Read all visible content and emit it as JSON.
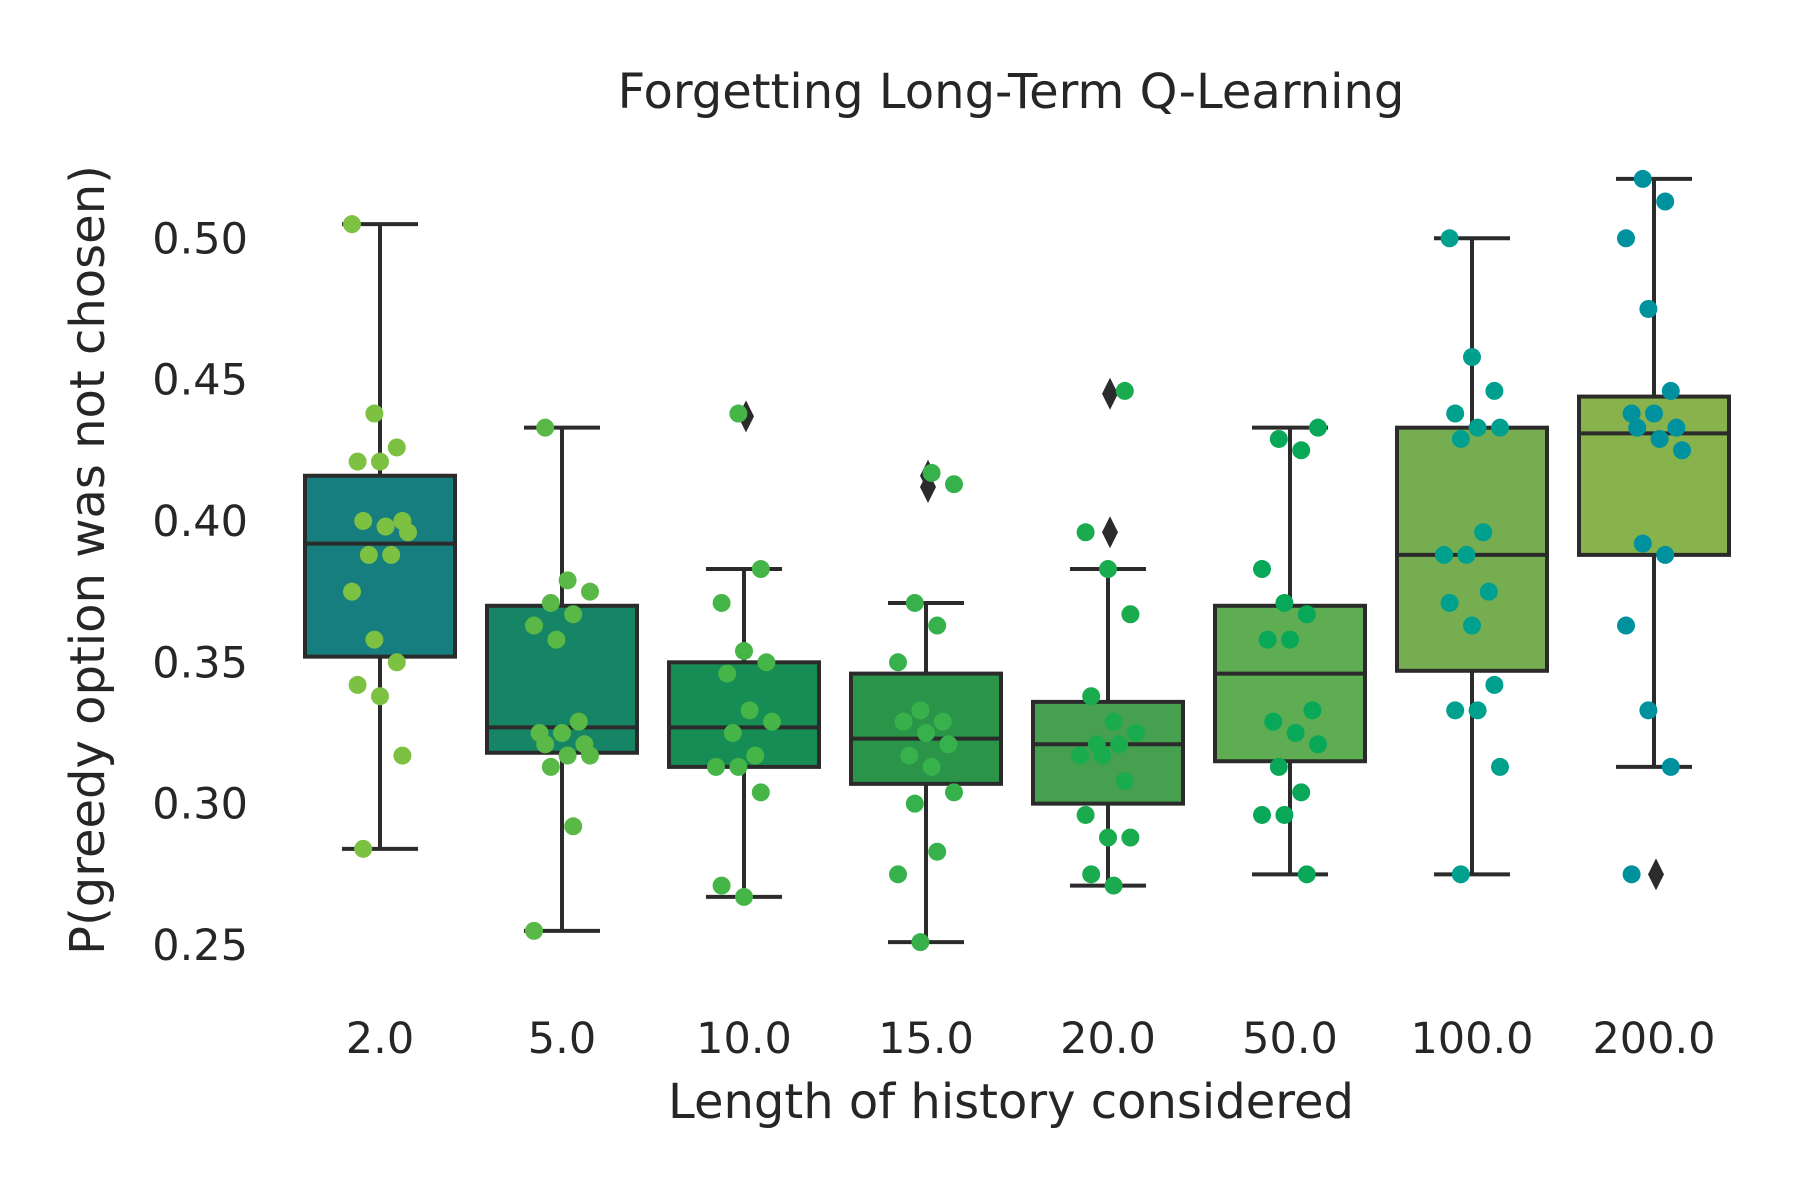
{
  "chart_data": {
    "type": "box",
    "title": "Forgetting Long-Term Q-Learning",
    "xlabel": "Length of history considered",
    "ylabel": "P(greedy option was not chosen)",
    "categories": [
      "2.0",
      "5.0",
      "10.0",
      "15.0",
      "20.0",
      "50.0",
      "100.0",
      "200.0"
    ],
    "ylim": [
      0.227,
      0.533
    ],
    "yticks": [
      0.25,
      0.3,
      0.35,
      0.4,
      0.45,
      0.5
    ],
    "ytick_labels": [
      "0.25",
      "0.30",
      "0.35",
      "0.40",
      "0.45",
      "0.50"
    ],
    "grid": false,
    "box_colors": [
      "#167e7e",
      "#158566",
      "#168d54",
      "#2a9548",
      "#46a050",
      "#5fad52",
      "#75ad50",
      "#88b24c"
    ],
    "point_colors": [
      "#7dc142",
      "#5ab946",
      "#45b548",
      "#36b14b",
      "#1aab4f",
      "#08a858",
      "#00a08f",
      "#00919f"
    ],
    "boxes": [
      {
        "whislo": 0.284,
        "q1": 0.352,
        "med": 0.392,
        "q3": 0.416,
        "whishi": 0.505,
        "fliers": []
      },
      {
        "whislo": 0.255,
        "q1": 0.318,
        "med": 0.327,
        "q3": 0.37,
        "whishi": 0.433,
        "fliers": []
      },
      {
        "whislo": 0.267,
        "q1": 0.313,
        "med": 0.327,
        "q3": 0.35,
        "whishi": 0.383,
        "fliers": [
          0.437
        ]
      },
      {
        "whislo": 0.251,
        "q1": 0.307,
        "med": 0.323,
        "q3": 0.346,
        "whishi": 0.371,
        "fliers": [
          0.412,
          0.416
        ]
      },
      {
        "whislo": 0.271,
        "q1": 0.3,
        "med": 0.321,
        "q3": 0.336,
        "whishi": 0.383,
        "fliers": [
          0.396,
          0.445
        ]
      },
      {
        "whislo": 0.275,
        "q1": 0.315,
        "med": 0.346,
        "q3": 0.37,
        "whishi": 0.433,
        "fliers": []
      },
      {
        "whislo": 0.275,
        "q1": 0.347,
        "med": 0.388,
        "q3": 0.433,
        "whishi": 0.5,
        "fliers": []
      },
      {
        "whislo": 0.313,
        "q1": 0.388,
        "med": 0.431,
        "q3": 0.444,
        "whishi": 0.521,
        "fliers": [
          0.275
        ]
      }
    ],
    "points": [
      [
        0.505,
        0.438,
        0.426,
        0.421,
        0.421,
        0.4,
        0.4,
        0.398,
        0.396,
        0.388,
        0.388,
        0.375,
        0.358,
        0.35,
        0.342,
        0.338,
        0.317,
        0.284
      ],
      [
        0.433,
        0.379,
        0.375,
        0.371,
        0.367,
        0.363,
        0.358,
        0.329,
        0.325,
        0.325,
        0.321,
        0.321,
        0.317,
        0.317,
        0.313,
        0.292,
        0.255
      ],
      [
        0.438,
        0.383,
        0.371,
        0.354,
        0.35,
        0.346,
        0.333,
        0.329,
        0.325,
        0.317,
        0.313,
        0.313,
        0.304,
        0.271,
        0.267
      ],
      [
        0.417,
        0.413,
        0.371,
        0.363,
        0.35,
        0.333,
        0.329,
        0.329,
        0.325,
        0.321,
        0.317,
        0.313,
        0.304,
        0.3,
        0.283,
        0.275,
        0.251
      ],
      [
        0.446,
        0.396,
        0.383,
        0.367,
        0.338,
        0.329,
        0.325,
        0.321,
        0.321,
        0.317,
        0.317,
        0.308,
        0.296,
        0.288,
        0.288,
        0.275,
        0.271
      ],
      [
        0.433,
        0.429,
        0.425,
        0.383,
        0.371,
        0.367,
        0.358,
        0.358,
        0.333,
        0.329,
        0.325,
        0.321,
        0.313,
        0.304,
        0.296,
        0.296,
        0.275
      ],
      [
        0.5,
        0.458,
        0.446,
        0.438,
        0.433,
        0.433,
        0.429,
        0.396,
        0.388,
        0.388,
        0.375,
        0.371,
        0.363,
        0.342,
        0.333,
        0.333,
        0.313,
        0.275
      ],
      [
        0.521,
        0.513,
        0.5,
        0.475,
        0.446,
        0.438,
        0.438,
        0.433,
        0.433,
        0.429,
        0.425,
        0.392,
        0.388,
        0.363,
        0.333,
        0.313,
        0.275
      ]
    ]
  }
}
